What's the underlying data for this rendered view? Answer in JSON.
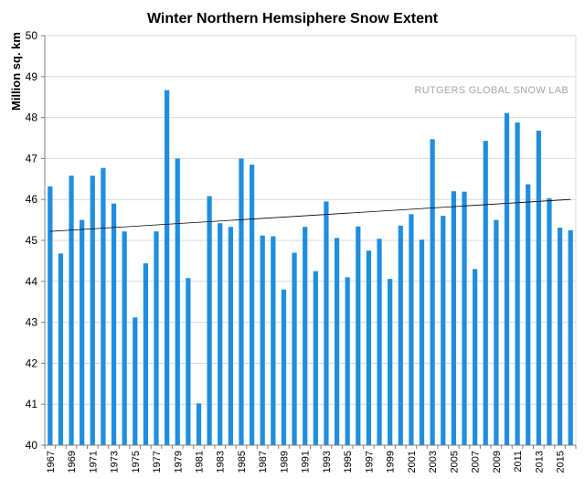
{
  "chart_data": {
    "type": "bar",
    "title": "Winter Northern Hemsiphere Snow Extent",
    "xlabel": "",
    "ylabel": "Million sq. km",
    "annotation": "RUTGERS GLOBAL SNOW LAB",
    "ylim": [
      40,
      50
    ],
    "yticks": [
      40,
      41,
      42,
      43,
      44,
      45,
      46,
      47,
      48,
      49,
      50
    ],
    "grid": true,
    "bar_color": "#1f8ee0",
    "trendline_color": "#000000",
    "categories": [
      1967,
      1968,
      1969,
      1970,
      1971,
      1972,
      1973,
      1974,
      1975,
      1976,
      1977,
      1978,
      1979,
      1980,
      1981,
      1982,
      1983,
      1984,
      1985,
      1986,
      1987,
      1988,
      1989,
      1990,
      1991,
      1992,
      1993,
      1994,
      1995,
      1996,
      1997,
      1998,
      1999,
      2000,
      2001,
      2002,
      2003,
      2004,
      2005,
      2006,
      2007,
      2008,
      2009,
      2010,
      2011,
      2012,
      2013,
      2014,
      2015,
      2016
    ],
    "tick_labels": [
      "1967",
      "1969",
      "1971",
      "1973",
      "1975",
      "1977",
      "1979",
      "1981",
      "1983",
      "1985",
      "1987",
      "1989",
      "1991",
      "1993",
      "1995",
      "1997",
      "1999",
      "2001",
      "2003",
      "2005",
      "2007",
      "2009",
      "2011",
      "2013",
      "2015"
    ],
    "values": [
      46.32,
      44.68,
      46.58,
      45.5,
      46.58,
      46.77,
      45.9,
      45.22,
      43.12,
      44.44,
      45.22,
      48.67,
      47.0,
      44.08,
      41.02,
      46.08,
      45.42,
      45.33,
      47.0,
      46.85,
      45.12,
      45.1,
      43.8,
      44.7,
      45.33,
      44.25,
      45.95,
      45.06,
      44.1,
      45.34,
      44.75,
      45.04,
      44.06,
      45.36,
      45.64,
      45.02,
      47.47,
      45.6,
      46.2,
      46.19,
      44.3,
      47.43,
      45.5,
      48.11,
      47.88,
      46.37,
      47.68,
      46.03,
      45.31,
      45.25
    ],
    "trendline": {
      "start": [
        1967,
        45.22
      ],
      "end": [
        2016,
        46.0
      ]
    }
  }
}
